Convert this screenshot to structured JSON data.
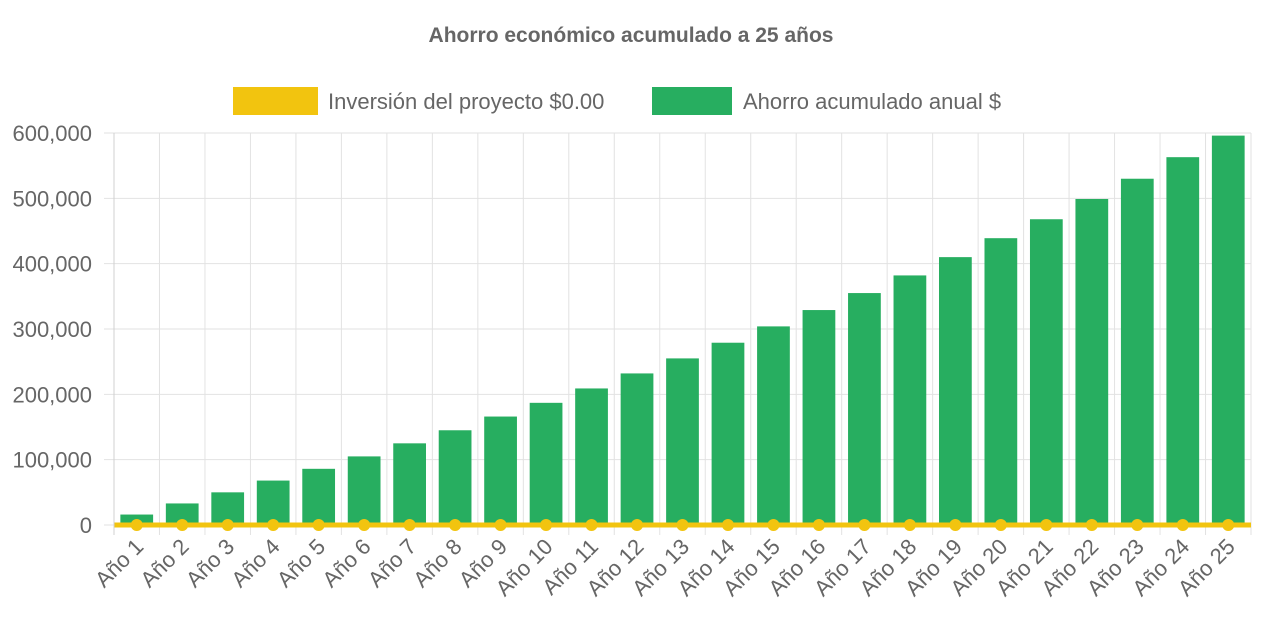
{
  "chart_data": {
    "type": "bar",
    "title": "Ahorro económico acumulado a 25 años",
    "categories": [
      "Año 1",
      "Año 2",
      "Año 3",
      "Año 4",
      "Año 5",
      "Año 6",
      "Año 7",
      "Año 8",
      "Año 9",
      "Año 10",
      "Año 11",
      "Año 12",
      "Año 13",
      "Año 14",
      "Año 15",
      "Año 16",
      "Año 17",
      "Año 18",
      "Año 19",
      "Año 20",
      "Año 21",
      "Año 22",
      "Año 23",
      "Año 24",
      "Año 25"
    ],
    "series": [
      {
        "name": "Inversión del proyecto $0.00",
        "type": "line",
        "color": "#f2c40f",
        "values": [
          0,
          0,
          0,
          0,
          0,
          0,
          0,
          0,
          0,
          0,
          0,
          0,
          0,
          0,
          0,
          0,
          0,
          0,
          0,
          0,
          0,
          0,
          0,
          0,
          0
        ]
      },
      {
        "name": "Ahorro acumulado anual $",
        "type": "bar",
        "color": "#27ae60",
        "values": [
          16000,
          33000,
          50000,
          68000,
          86000,
          105000,
          125000,
          145000,
          166000,
          187000,
          209000,
          232000,
          255000,
          279000,
          304000,
          329000,
          355000,
          382000,
          410000,
          439000,
          468000,
          499000,
          530000,
          563000,
          596000
        ]
      }
    ],
    "ylim": [
      0,
      600000
    ],
    "yticks": [
      "0",
      "100,000",
      "200,000",
      "300,000",
      "400,000",
      "500,000",
      "600,000"
    ],
    "xlabel": "",
    "ylabel": "",
    "grid": true,
    "legend_position": "top"
  }
}
